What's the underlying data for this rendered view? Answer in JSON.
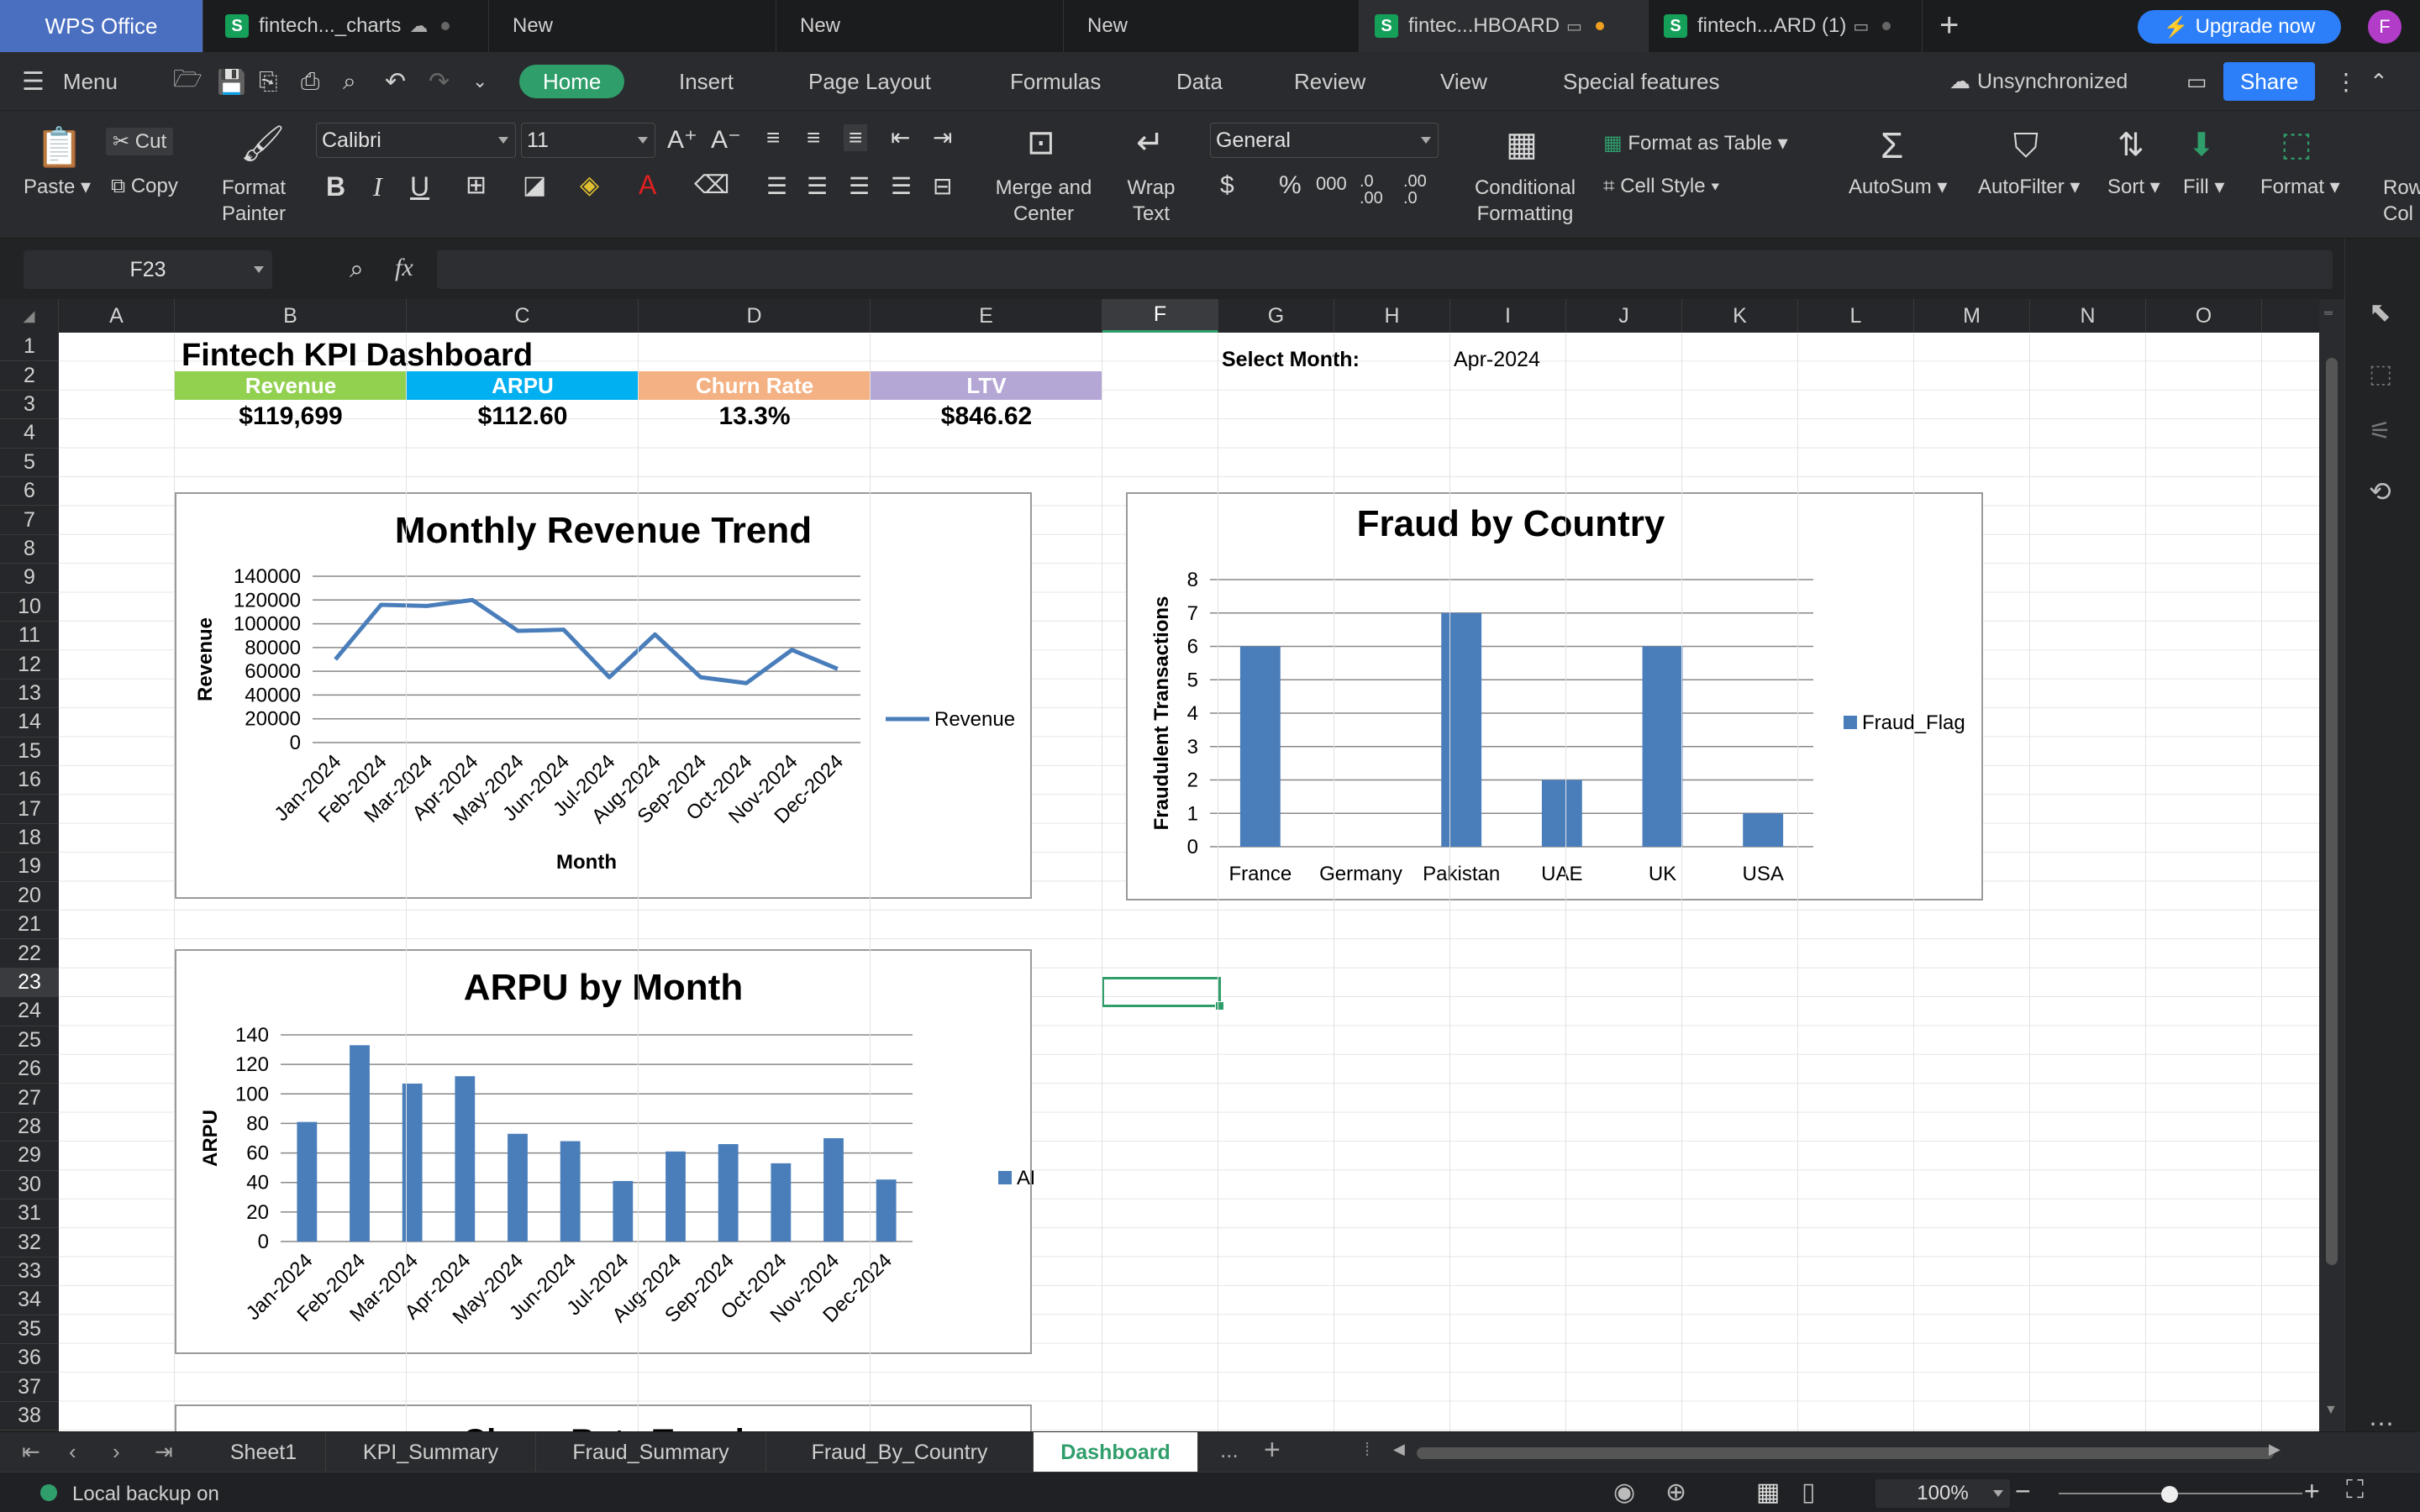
{
  "window": {
    "app_tab": "WPS Office",
    "tabs": [
      {
        "label": "fintech..._charts",
        "type": "sheet"
      },
      {
        "label": "New",
        "type": "new"
      },
      {
        "label": "New",
        "type": "new"
      },
      {
        "label": "New",
        "type": "new"
      },
      {
        "label": "fintec...HBOARD",
        "type": "sheet",
        "active": true
      },
      {
        "label": "fintech...ARD (1)",
        "type": "sheet"
      }
    ],
    "upgrade_label": "Upgrade now",
    "avatar_letter": "F"
  },
  "menubar": {
    "menu_label": "Menu",
    "tabs": [
      "Home",
      "Insert",
      "Page Layout",
      "Formulas",
      "Data",
      "Review",
      "View",
      "Special features"
    ],
    "sync_status": "Unsynchronized",
    "share_label": "Share"
  },
  "ribbon": {
    "paste": "Paste",
    "cut": "Cut",
    "copy": "Copy",
    "format_painter": [
      "Format",
      "Painter"
    ],
    "font_name": "Calibri",
    "font_size": "11",
    "merge_center": [
      "Merge and",
      "Center"
    ],
    "wrap_text": [
      "Wrap",
      "Text"
    ],
    "number_format": "General",
    "conditional_formatting": [
      "Conditional",
      "Formatting"
    ],
    "format_as_table": "Format as Table",
    "cell_style": "Cell Style",
    "autosum": "AutoSum",
    "autofilter": "AutoFilter",
    "sort": "Sort",
    "fill": "Fill",
    "format": "Format",
    "row_col": [
      "Row",
      "Col"
    ]
  },
  "formula_bar": {
    "name_box": "F23",
    "fx": "fx",
    "value": ""
  },
  "grid": {
    "columns": [
      "A",
      "B",
      "C",
      "D",
      "E",
      "F",
      "G",
      "H",
      "I",
      "J",
      "K",
      "L",
      "M",
      "N",
      "O"
    ],
    "rows": [
      "1",
      "2",
      "3",
      "4",
      "5",
      "6",
      "7",
      "8",
      "9",
      "10",
      "11",
      "12",
      "13",
      "14",
      "15",
      "16",
      "17",
      "18",
      "19",
      "20",
      "21",
      "22",
      "23",
      "24",
      "25",
      "26",
      "27",
      "28",
      "29",
      "30",
      "31",
      "32",
      "33",
      "34",
      "35",
      "36",
      "37",
      "38"
    ],
    "selected_column": "F",
    "selected_row": "23"
  },
  "dashboard": {
    "title": "Fintech KPI Dashboard",
    "select_month_label": "Select Month:",
    "select_month_value": "Apr-2024",
    "kpis": [
      {
        "label": "Revenue",
        "value": "$119,699",
        "color": "#92d050"
      },
      {
        "label": "ARPU",
        "value": "$112.60",
        "color": "#00b0f0"
      },
      {
        "label": "Churn Rate",
        "value": "13.3%",
        "color": "#f4b183"
      },
      {
        "label": "LTV",
        "value": "$846.62",
        "color": "#b4a7d6"
      }
    ],
    "next_chart_title_partial": "Churn Rate Trend"
  },
  "chart_data": [
    {
      "type": "line",
      "title": "Monthly Revenue Trend",
      "xlabel": "Month",
      "ylabel": "Revenue",
      "categories": [
        "Jan-2024",
        "Feb-2024",
        "Mar-2024",
        "Apr-2024",
        "May-2024",
        "Jun-2024",
        "Jul-2024",
        "Aug-2024",
        "Sep-2024",
        "Oct-2024",
        "Nov-2024",
        "Dec-2024"
      ],
      "series": [
        {
          "name": "Revenue",
          "values": [
            70000,
            116000,
            115000,
            120000,
            94000,
            95000,
            55000,
            91000,
            55000,
            50000,
            78000,
            62000
          ],
          "color": "#4a7ebb"
        }
      ],
      "ylim": [
        0,
        140000
      ],
      "yticks": [
        "0",
        "20000",
        "40000",
        "60000",
        "80000",
        "100000",
        "120000",
        "140000"
      ],
      "legend": "right",
      "grid": true
    },
    {
      "type": "bar",
      "title": "Fraud by Country",
      "xlabel": "",
      "ylabel": "Fraudulent Transactions",
      "categories": [
        "France",
        "Germany",
        "Pakistan",
        "UAE",
        "UK",
        "USA"
      ],
      "series": [
        {
          "name": "Fraud_Flag",
          "values": [
            6,
            0,
            7,
            2,
            6,
            1
          ],
          "color": "#4a7ebb"
        }
      ],
      "ylim": [
        0,
        8
      ],
      "yticks": [
        "0",
        "1",
        "2",
        "3",
        "4",
        "5",
        "6",
        "7",
        "8"
      ],
      "legend": "right",
      "grid": true
    },
    {
      "type": "bar",
      "title": "ARPU by Month",
      "xlabel": "",
      "ylabel": "ARPU",
      "categories": [
        "Jan-2024",
        "Feb-2024",
        "Mar-2024",
        "Apr-2024",
        "May-2024",
        "Jun-2024",
        "Jul-2024",
        "Aug-2024",
        "Sep-2024",
        "Oct-2024",
        "Nov-2024",
        "Dec-2024"
      ],
      "series": [
        {
          "name": "ARPU",
          "values": [
            81,
            133,
            107,
            112,
            73,
            68,
            41,
            61,
            66,
            53,
            70,
            42
          ],
          "color": "#4a7ebb"
        }
      ],
      "ylim": [
        0,
        140
      ],
      "yticks": [
        "0",
        "20",
        "40",
        "60",
        "80",
        "100",
        "120",
        "140"
      ],
      "legend": "right",
      "grid": true
    }
  ],
  "sheet_tabs": [
    "Sheet1",
    "KPI_Summary",
    "Fraud_Summary",
    "Fraud_By_Country",
    "Dashboard"
  ],
  "active_sheet": "Dashboard",
  "status": {
    "backup": "Local backup on",
    "zoom": "100%"
  }
}
